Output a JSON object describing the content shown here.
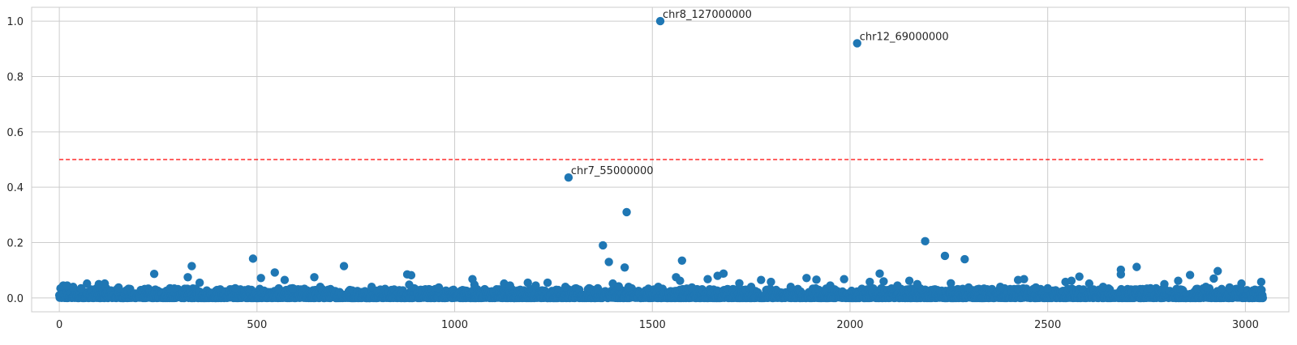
{
  "chart_data": {
    "type": "scatter",
    "title": "",
    "xlabel": "",
    "ylabel": "",
    "xlim": [
      -70,
      3110
    ],
    "ylim": [
      -0.05,
      1.05
    ],
    "xticks": [
      0,
      500,
      1000,
      1500,
      2000,
      2500,
      3000
    ],
    "yticks": [
      0.0,
      0.2,
      0.4,
      0.6,
      0.8,
      1.0
    ],
    "xtick_labels": [
      "0",
      "500",
      "1000",
      "1500",
      "2000",
      "2500",
      "3000"
    ],
    "ytick_labels": [
      "0.0",
      "0.2",
      "0.4",
      "0.6",
      "0.8",
      "1.0"
    ],
    "grid": true,
    "marker_color": "#1f77b4",
    "threshold": {
      "y": 0.5,
      "x_start": 0,
      "x_end": 3045,
      "color": "#ff0000",
      "style": "dashed"
    },
    "n_points": 3045,
    "background_range": [
      0.0,
      0.035
    ],
    "annotations": [
      {
        "x": 1520,
        "y": 1.0,
        "label": "chr8_127000000"
      },
      {
        "x": 2018,
        "y": 0.92,
        "label": "chr12_69000000"
      },
      {
        "x": 1288,
        "y": 0.435,
        "label": "chr7_55000000"
      }
    ],
    "outliers": [
      [
        1435,
        0.31
      ],
      [
        2190,
        0.205
      ],
      [
        1375,
        0.19
      ],
      [
        2240,
        0.152
      ],
      [
        490,
        0.142
      ],
      [
        2290,
        0.14
      ],
      [
        1575,
        0.135
      ],
      [
        1390,
        0.13
      ],
      [
        335,
        0.115
      ],
      [
        720,
        0.115
      ],
      [
        2725,
        0.112
      ],
      [
        1430,
        0.11
      ],
      [
        2685,
        0.102
      ],
      [
        2930,
        0.097
      ],
      [
        545,
        0.092
      ],
      [
        240,
        0.087
      ],
      [
        1680,
        0.088
      ],
      [
        2075,
        0.088
      ],
      [
        880,
        0.085
      ],
      [
        2860,
        0.083
      ],
      [
        2685,
        0.085
      ],
      [
        890,
        0.082
      ],
      [
        1665,
        0.08
      ],
      [
        2580,
        0.077
      ],
      [
        645,
        0.075
      ],
      [
        325,
        0.075
      ],
      [
        510,
        0.072
      ],
      [
        1560,
        0.075
      ],
      [
        1890,
        0.072
      ],
      [
        2920,
        0.07
      ],
      [
        1045,
        0.068
      ],
      [
        1985,
        0.068
      ],
      [
        1640,
        0.068
      ],
      [
        1915,
        0.066
      ],
      [
        570,
        0.065
      ],
      [
        2425,
        0.065
      ],
      [
        2440,
        0.068
      ],
      [
        1775,
        0.065
      ],
      [
        2150,
        0.062
      ],
      [
        1570,
        0.062
      ],
      [
        2560,
        0.062
      ],
      [
        2830,
        0.062
      ],
      [
        2050,
        0.058
      ],
      [
        2085,
        0.06
      ],
      [
        2545,
        0.058
      ],
      [
        1800,
        0.058
      ],
      [
        1185,
        0.055
      ],
      [
        355,
        0.055
      ],
      [
        115,
        0.052
      ],
      [
        2605,
        0.052
      ],
      [
        1235,
        0.055
      ],
      [
        70,
        0.052
      ],
      [
        100,
        0.05
      ],
      [
        1125,
        0.052
      ],
      [
        885,
        0.048
      ],
      [
        2255,
        0.053
      ],
      [
        1720,
        0.053
      ],
      [
        2990,
        0.052
      ],
      [
        3040,
        0.058
      ],
      [
        1050,
        0.048
      ],
      [
        1400,
        0.052
      ],
      [
        2795,
        0.05
      ],
      [
        2170,
        0.05
      ],
      [
        1140,
        0.045
      ],
      [
        1205,
        0.045
      ],
      [
        1415,
        0.042
      ],
      [
        1440,
        0.04
      ],
      [
        1515,
        0.04
      ],
      [
        10,
        0.045
      ],
      [
        20,
        0.045
      ],
      [
        35,
        0.04
      ],
      [
        55,
        0.035
      ],
      [
        150,
        0.038
      ],
      [
        280,
        0.035
      ],
      [
        445,
        0.035
      ],
      [
        590,
        0.035
      ],
      [
        660,
        0.04
      ],
      [
        790,
        0.04
      ],
      [
        960,
        0.038
      ],
      [
        1280,
        0.04
      ],
      [
        1340,
        0.035
      ],
      [
        1600,
        0.038
      ],
      [
        1750,
        0.04
      ],
      [
        1850,
        0.04
      ],
      [
        1950,
        0.045
      ],
      [
        2120,
        0.045
      ],
      [
        2300,
        0.038
      ],
      [
        2380,
        0.04
      ],
      [
        2470,
        0.038
      ],
      [
        2500,
        0.035
      ],
      [
        2640,
        0.04
      ],
      [
        2760,
        0.035
      ],
      [
        2900,
        0.04
      ],
      [
        2960,
        0.038
      ]
    ]
  }
}
